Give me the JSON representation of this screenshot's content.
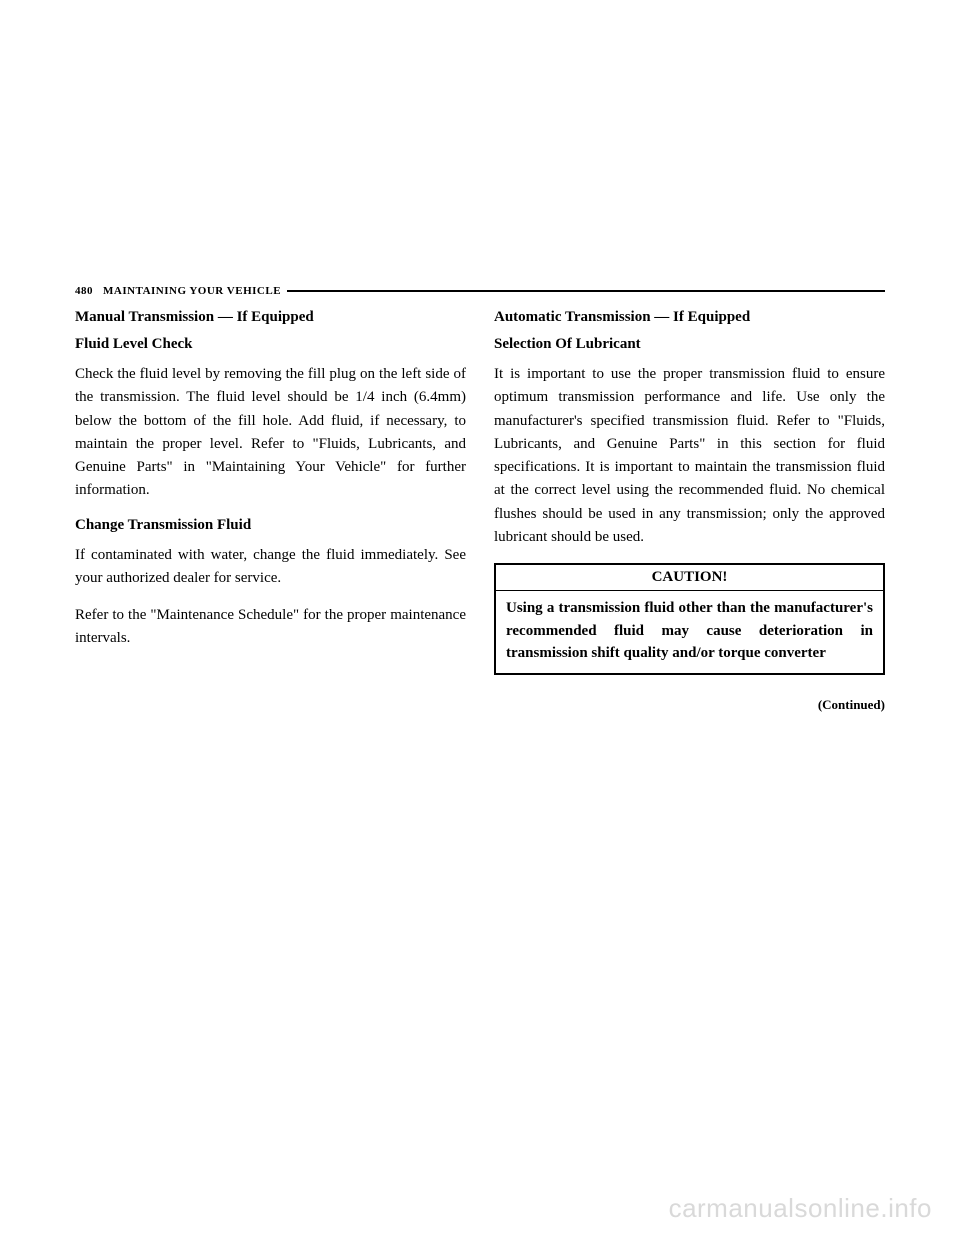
{
  "header": {
    "page_number": "480",
    "section_title": "MAINTAINING YOUR VEHICLE"
  },
  "left_column": {
    "heading": "Manual Transmission — If Equipped",
    "subheading1": "Fluid Level Check",
    "paragraph1": "Check the fluid level by removing the fill plug on the left side of the transmission. The fluid level should be 1/4 inch (6.4mm) below the bottom of the fill hole. Add fluid, if necessary, to maintain the proper level. Refer to \"Fluids, Lubricants, and Genuine Parts\" in \"Maintaining Your Vehicle\" for further information.",
    "subheading2": "Change Transmission Fluid",
    "paragraph2": "If contaminated with water, change the fluid immediately. See your authorized dealer for service.",
    "paragraph3": "Refer to the \"Maintenance Schedule\" for the proper maintenance intervals."
  },
  "right_column": {
    "heading": "Automatic Transmission — If Equipped",
    "subheading1": "Selection Of Lubricant",
    "paragraph1": "It is important to use the proper transmission fluid to ensure optimum transmission performance and life. Use only the manufacturer's specified transmission fluid. Refer to \"Fluids, Lubricants, and Genuine Parts\" in this section for fluid specifications. It is important to maintain the transmission fluid at the correct level using the recommended fluid. No chemical flushes should be used in any transmission; only the approved lubricant should be used.",
    "caution_title": "CAUTION!",
    "caution_text": "Using a transmission fluid other than the manufacturer's recommended fluid may cause deterioration in transmission shift quality and/or torque converter",
    "continued": "(Continued)"
  },
  "watermark": "carmanualsonline.info"
}
